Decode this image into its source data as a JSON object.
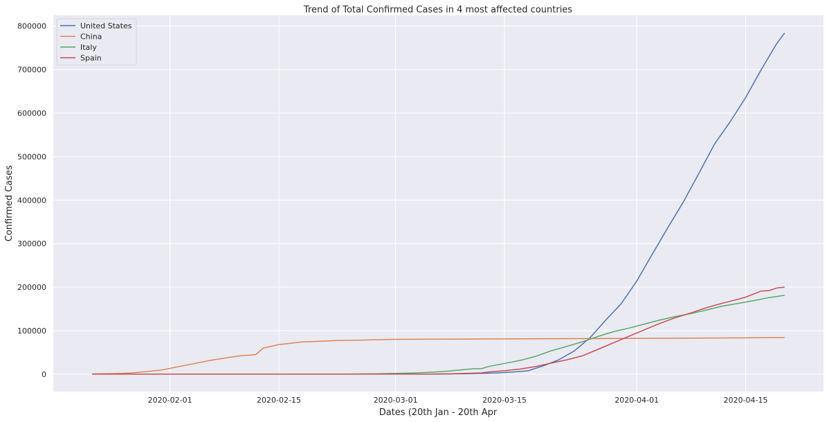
{
  "chart_data": {
    "type": "line",
    "title": "Trend of Total Confirmed Cases in 4 most affected countries",
    "xlabel": "Dates (20th Jan - 20th Apr",
    "ylabel": "Confirmed Cases",
    "x_start": "2020-01-22",
    "x_end": "2020-04-20",
    "xlim": [
      "2020-01-17",
      "2020-04-25"
    ],
    "ylim": [
      -40000,
      825000
    ],
    "x_ticks": [
      "2020-02-01",
      "2020-02-15",
      "2020-03-01",
      "2020-03-15",
      "2020-04-01",
      "2020-04-15"
    ],
    "y_ticks": [
      0,
      100000,
      200000,
      300000,
      400000,
      500000,
      600000,
      700000,
      800000
    ],
    "y_tick_labels": [
      "0",
      "100000",
      "200000",
      "300000",
      "400000",
      "500000",
      "600000",
      "700000",
      "800000"
    ],
    "grid": true,
    "legend_position": "top-left",
    "background": "#eaeaf2",
    "series": [
      {
        "name": "United States",
        "color": "#4c72b0",
        "points": [
          [
            "2020-01-22",
            1
          ],
          [
            "2020-02-15",
            15
          ],
          [
            "2020-03-01",
            75
          ],
          [
            "2020-03-05",
            220
          ],
          [
            "2020-03-08",
            540
          ],
          [
            "2020-03-10",
            960
          ],
          [
            "2020-03-12",
            1660
          ],
          [
            "2020-03-14",
            2730
          ],
          [
            "2020-03-16",
            4630
          ],
          [
            "2020-03-18",
            7780
          ],
          [
            "2020-03-20",
            19100
          ],
          [
            "2020-03-22",
            33300
          ],
          [
            "2020-03-24",
            53700
          ],
          [
            "2020-03-26",
            83800
          ],
          [
            "2020-03-28",
            124000
          ],
          [
            "2020-03-30",
            162000
          ],
          [
            "2020-04-01",
            214000
          ],
          [
            "2020-04-03",
            276000
          ],
          [
            "2020-04-05",
            337000
          ],
          [
            "2020-04-07",
            396000
          ],
          [
            "2020-04-09",
            462000
          ],
          [
            "2020-04-11",
            529000
          ],
          [
            "2020-04-13",
            580000
          ],
          [
            "2020-04-15",
            636000
          ],
          [
            "2020-04-17",
            700000
          ],
          [
            "2020-04-19",
            760000
          ],
          [
            "2020-04-20",
            784000
          ]
        ]
      },
      {
        "name": "China",
        "color": "#dd8452",
        "points": [
          [
            "2020-01-22",
            548
          ],
          [
            "2020-01-25",
            1400
          ],
          [
            "2020-01-27",
            2800
          ],
          [
            "2020-01-29",
            6000
          ],
          [
            "2020-01-31",
            9800
          ],
          [
            "2020-02-02",
            17000
          ],
          [
            "2020-02-04",
            24000
          ],
          [
            "2020-02-06",
            31000
          ],
          [
            "2020-02-08",
            37000
          ],
          [
            "2020-02-10",
            42000
          ],
          [
            "2020-02-12",
            44800
          ],
          [
            "2020-02-13",
            60000
          ],
          [
            "2020-02-15",
            68000
          ],
          [
            "2020-02-18",
            74000
          ],
          [
            "2020-02-21",
            76000
          ],
          [
            "2020-02-22",
            77000
          ],
          [
            "2020-02-25",
            78000
          ],
          [
            "2020-03-01",
            80000
          ],
          [
            "2020-03-15",
            81000
          ],
          [
            "2020-04-01",
            82300
          ],
          [
            "2020-04-15",
            83400
          ],
          [
            "2020-04-17",
            84000
          ],
          [
            "2020-04-20",
            84200
          ]
        ]
      },
      {
        "name": "Italy",
        "color": "#55a868",
        "points": [
          [
            "2020-01-22",
            0
          ],
          [
            "2020-02-20",
            3
          ],
          [
            "2020-02-24",
            230
          ],
          [
            "2020-02-28",
            890
          ],
          [
            "2020-03-01",
            1700
          ],
          [
            "2020-03-03",
            2500
          ],
          [
            "2020-03-05",
            3900
          ],
          [
            "2020-03-07",
            5900
          ],
          [
            "2020-03-09",
            9200
          ],
          [
            "2020-03-11",
            12500
          ],
          [
            "2020-03-12",
            12500
          ],
          [
            "2020-03-13",
            17700
          ],
          [
            "2020-03-15",
            24700
          ],
          [
            "2020-03-17",
            31500
          ],
          [
            "2020-03-19",
            41000
          ],
          [
            "2020-03-21",
            53600
          ],
          [
            "2020-03-23",
            63900
          ],
          [
            "2020-03-25",
            74400
          ],
          [
            "2020-03-27",
            86500
          ],
          [
            "2020-03-29",
            97700
          ],
          [
            "2020-03-31",
            105800
          ],
          [
            "2020-04-02",
            115200
          ],
          [
            "2020-04-04",
            124600
          ],
          [
            "2020-04-06",
            132500
          ],
          [
            "2020-04-08",
            139400
          ],
          [
            "2020-04-10",
            147600
          ],
          [
            "2020-04-12",
            156400
          ],
          [
            "2020-04-14",
            162500
          ],
          [
            "2020-04-16",
            168900
          ],
          [
            "2020-04-18",
            175900
          ],
          [
            "2020-04-20",
            181200
          ]
        ]
      },
      {
        "name": "Spain",
        "color": "#c44e52",
        "points": [
          [
            "2020-01-22",
            0
          ],
          [
            "2020-02-25",
            6
          ],
          [
            "2020-03-01",
            84
          ],
          [
            "2020-03-05",
            260
          ],
          [
            "2020-03-08",
            670
          ],
          [
            "2020-03-10",
            1700
          ],
          [
            "2020-03-12",
            3000
          ],
          [
            "2020-03-13",
            5200
          ],
          [
            "2020-03-15",
            7800
          ],
          [
            "2020-03-17",
            11700
          ],
          [
            "2020-03-19",
            17400
          ],
          [
            "2020-03-21",
            25300
          ],
          [
            "2020-03-23",
            33000
          ],
          [
            "2020-03-25",
            42000
          ],
          [
            "2020-03-27",
            57000
          ],
          [
            "2020-03-29",
            72000
          ],
          [
            "2020-03-31",
            87000
          ],
          [
            "2020-04-02",
            102000
          ],
          [
            "2020-04-04",
            117000
          ],
          [
            "2020-04-06",
            130000
          ],
          [
            "2020-04-08",
            141000
          ],
          [
            "2020-04-10",
            153000
          ],
          [
            "2020-04-12",
            163000
          ],
          [
            "2020-04-14",
            172000
          ],
          [
            "2020-04-15",
            177000
          ],
          [
            "2020-04-17",
            191000
          ],
          [
            "2020-04-18",
            192000
          ],
          [
            "2020-04-19",
            198000
          ],
          [
            "2020-04-20",
            200000
          ]
        ]
      }
    ]
  }
}
